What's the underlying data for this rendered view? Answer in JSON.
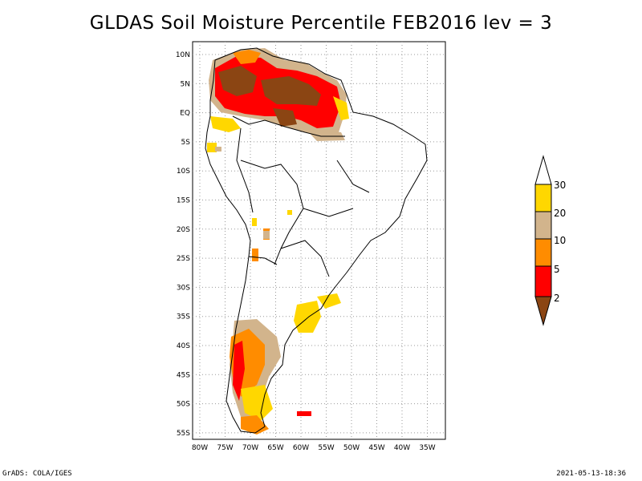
{
  "title": "GLDAS Soil Moisture Percentile FEB2016 lev = 3",
  "footer": {
    "left": "GrADS: COLA/IGES",
    "right": "2021-05-13-18:36"
  },
  "map": {
    "lon_range": [
      -80,
      -32
    ],
    "lat_range": [
      -56,
      12
    ],
    "x_ticks": [
      "80W",
      "75W",
      "70W",
      "65W",
      "60W",
      "55W",
      "50W",
      "45W",
      "40W",
      "35W"
    ],
    "y_ticks": [
      "10N",
      "5N",
      "EQ",
      "5S",
      "10S",
      "15S",
      "20S",
      "25S",
      "30S",
      "35S",
      "40S",
      "45S",
      "50S",
      "55S"
    ],
    "grid": true
  },
  "legend": {
    "labels": [
      "30",
      "20",
      "10",
      "5",
      "2"
    ],
    "colors": {
      "below_2": "#8b4513",
      "2_5": "#ff0000",
      "5_10": "#ff8c00",
      "10_20": "#d2b48c",
      "20_30": "#ffd700",
      "above_30": "#ffffff"
    }
  }
}
